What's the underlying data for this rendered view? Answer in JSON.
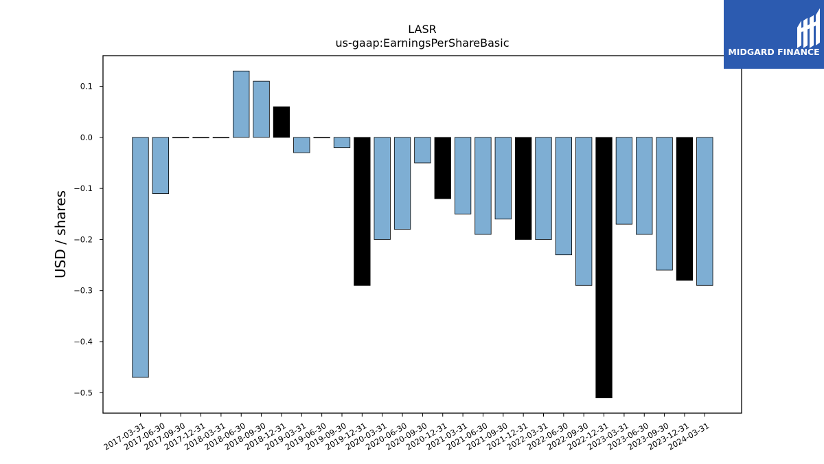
{
  "chart_data": {
    "type": "bar",
    "title": "LASR",
    "subtitle": "us-gaap:EarningsPerShareBasic",
    "xlabel": "",
    "ylabel": "USD / shares",
    "ylim": [
      -0.54,
      0.16
    ],
    "yticks": [
      0.1,
      0.0,
      -0.1,
      -0.2,
      -0.3,
      -0.4,
      -0.5
    ],
    "ytick_labels": [
      "0.1",
      "0.0",
      "−0.1",
      "−0.2",
      "−0.3",
      "−0.4",
      "−0.5"
    ],
    "grid": false,
    "colors": {
      "quarterly": "#7eaed3",
      "annual": "#000000",
      "edge": "#000000"
    },
    "categories": [
      "2017-03-31",
      "2017-06-30",
      "2017-09-30",
      "2017-12-31",
      "2018-03-31",
      "2018-06-30",
      "2018-09-30",
      "2018-12-31",
      "2019-03-31",
      "2019-06-30",
      "2019-09-30",
      "2019-12-31",
      "2020-03-31",
      "2020-06-30",
      "2020-09-30",
      "2020-12-31",
      "2021-03-31",
      "2021-06-30",
      "2021-09-30",
      "2021-12-31",
      "2022-03-31",
      "2022-06-30",
      "2022-09-30",
      "2022-12-31",
      "2023-03-31",
      "2023-06-30",
      "2023-09-30",
      "2023-12-31",
      "2024-03-31"
    ],
    "values": [
      -0.47,
      -0.11,
      0.0,
      0.0,
      0.0,
      0.13,
      0.11,
      0.06,
      -0.03,
      0.0,
      -0.02,
      -0.29,
      -0.2,
      -0.18,
      -0.05,
      -0.12,
      -0.15,
      -0.19,
      -0.16,
      -0.2,
      -0.2,
      -0.23,
      -0.29,
      -0.51,
      -0.17,
      -0.19,
      -0.26,
      -0.28,
      -0.29
    ],
    "bar_kind": [
      "q",
      "q",
      "q",
      "q",
      "q",
      "q",
      "q",
      "a",
      "q",
      "q",
      "q",
      "a",
      "q",
      "q",
      "q",
      "a",
      "q",
      "q",
      "q",
      "a",
      "q",
      "q",
      "q",
      "a",
      "q",
      "q",
      "q",
      "a",
      "q"
    ]
  },
  "logo": {
    "text": "MIDGARD FINANCE",
    "background": "#2c5bb0"
  }
}
